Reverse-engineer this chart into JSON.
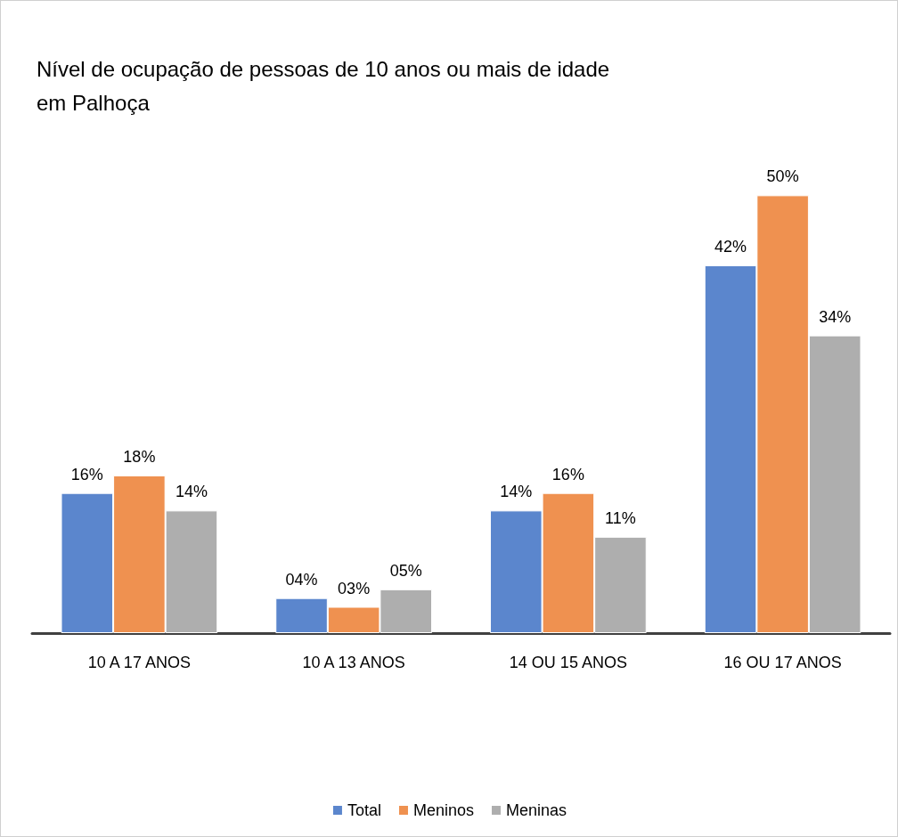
{
  "chart_data": {
    "type": "bar",
    "title": "Nível de ocupação de pessoas de 10 anos ou mais de idade\nem Palhoça",
    "categories": [
      "10 A 17 ANOS",
      "10 A 13 ANOS",
      "14 OU 15 ANOS",
      "16 OU 17 ANOS"
    ],
    "series": [
      {
        "name": "Total",
        "color": "#5b86cd",
        "values": [
          16,
          4,
          14,
          42
        ],
        "value_labels": [
          "16%",
          "04%",
          "14%",
          "42%"
        ]
      },
      {
        "name": "Meninos",
        "color": "#ef9150",
        "values": [
          18,
          3,
          16,
          50
        ],
        "value_labels": [
          "18%",
          "03%",
          "16%",
          "50%"
        ]
      },
      {
        "name": "Meninas",
        "color": "#aeaeae",
        "values": [
          14,
          5,
          11,
          34
        ],
        "value_labels": [
          "14%",
          "05%",
          "11%",
          "34%"
        ]
      }
    ],
    "grid": false,
    "legend": "bottom"
  }
}
